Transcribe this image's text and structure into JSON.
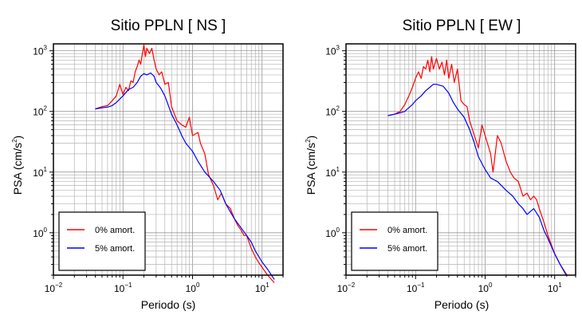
{
  "charts": [
    {
      "title": "Sitio PPLN [ NS ]",
      "xlabel": "Periodo (s)",
      "ylabel_main": "PSA (cm/s",
      "ylabel_sup": "2",
      "ylabel_close": ")"
    },
    {
      "title": "Sitio PPLN [ EW ]",
      "xlabel": "Periodo (s)",
      "ylabel_main": "PSA (cm/s",
      "ylabel_sup": "2",
      "ylabel_close": ")"
    }
  ],
  "chart_data": [
    {
      "type": "line",
      "title": "Sitio PPLN [ NS ]",
      "xlabel": "Periodo (s)",
      "ylabel": "PSA (cm/s2)",
      "xscale": "log",
      "yscale": "log",
      "xlim": [
        0.01,
        20
      ],
      "ylim": [
        0.2,
        1300
      ],
      "x_ticks": [
        {
          "base": "10",
          "exp": "−2",
          "value": 0.01
        },
        {
          "base": "10",
          "exp": "−1",
          "value": 0.1
        },
        {
          "base": "10",
          "exp": "0",
          "value": 1
        },
        {
          "base": "10",
          "exp": "1",
          "value": 10
        }
      ],
      "y_ticks": [
        {
          "base": "10",
          "exp": "0",
          "value": 1
        },
        {
          "base": "10",
          "exp": "1",
          "value": 10
        },
        {
          "base": "10",
          "exp": "2",
          "value": 100
        },
        {
          "base": "10",
          "exp": "3",
          "value": 1000
        }
      ],
      "grid": true,
      "legend_position": "bottom-left",
      "series": [
        {
          "name": "0% amort.",
          "color": "#ff0000",
          "x": [
            0.04,
            0.05,
            0.06,
            0.07,
            0.08,
            0.09,
            0.1,
            0.11,
            0.12,
            0.13,
            0.14,
            0.15,
            0.16,
            0.17,
            0.18,
            0.19,
            0.2,
            0.21,
            0.22,
            0.24,
            0.26,
            0.28,
            0.3,
            0.33,
            0.36,
            0.4,
            0.45,
            0.5,
            0.55,
            0.6,
            0.7,
            0.8,
            0.9,
            1.0,
            1.2,
            1.3,
            1.5,
            1.7,
            2.0,
            2.3,
            2.6,
            3.0,
            3.5,
            4.0,
            4.5,
            5.0,
            5.5,
            6.0,
            7.0,
            8.0,
            9.0,
            10,
            12,
            15
          ],
          "y": [
            110,
            120,
            125,
            150,
            180,
            280,
            190,
            250,
            220,
            320,
            300,
            450,
            550,
            700,
            600,
            900,
            1250,
            800,
            1100,
            900,
            1100,
            700,
            500,
            400,
            450,
            280,
            300,
            120,
            90,
            70,
            60,
            55,
            80,
            40,
            45,
            30,
            20,
            9,
            6,
            3.5,
            4.5,
            3.0,
            2.5,
            1.7,
            1.3,
            1.1,
            0.9,
            0.9,
            0.55,
            0.4,
            0.32,
            0.27,
            0.2,
            0.15
          ]
        },
        {
          "name": "5% amort.",
          "color": "#0000ff",
          "x": [
            0.04,
            0.05,
            0.06,
            0.07,
            0.08,
            0.09,
            0.1,
            0.12,
            0.14,
            0.16,
            0.18,
            0.2,
            0.22,
            0.25,
            0.28,
            0.3,
            0.35,
            0.4,
            0.5,
            0.6,
            0.7,
            0.8,
            1.0,
            1.2,
            1.5,
            2.0,
            2.5,
            3.0,
            3.5,
            4.0,
            5.0,
            6.0,
            7.0,
            8.0,
            10,
            12,
            15
          ],
          "y": [
            110,
            115,
            118,
            125,
            140,
            160,
            180,
            230,
            250,
            300,
            380,
            420,
            400,
            430,
            380,
            300,
            240,
            180,
            90,
            60,
            40,
            30,
            22,
            15,
            10,
            7,
            5,
            3,
            2.2,
            1.7,
            1.2,
            0.9,
            0.7,
            0.5,
            0.33,
            0.25,
            0.17
          ]
        }
      ]
    },
    {
      "type": "line",
      "title": "Sitio PPLN [ EW ]",
      "xlabel": "Periodo (s)",
      "ylabel": "PSA (cm/s2)",
      "xscale": "log",
      "yscale": "log",
      "xlim": [
        0.01,
        20
      ],
      "ylim": [
        0.2,
        1300
      ],
      "x_ticks": [
        {
          "base": "10",
          "exp": "−2",
          "value": 0.01
        },
        {
          "base": "10",
          "exp": "−1",
          "value": 0.1
        },
        {
          "base": "10",
          "exp": "0",
          "value": 1
        },
        {
          "base": "10",
          "exp": "1",
          "value": 10
        }
      ],
      "y_ticks": [
        {
          "base": "10",
          "exp": "0",
          "value": 1
        },
        {
          "base": "10",
          "exp": "1",
          "value": 10
        },
        {
          "base": "10",
          "exp": "2",
          "value": 100
        },
        {
          "base": "10",
          "exp": "3",
          "value": 1000
        }
      ],
      "grid": true,
      "legend_position": "bottom-left",
      "series": [
        {
          "name": "0% amort.",
          "color": "#ff0000",
          "x": [
            0.04,
            0.05,
            0.06,
            0.07,
            0.08,
            0.09,
            0.1,
            0.11,
            0.12,
            0.13,
            0.14,
            0.15,
            0.16,
            0.17,
            0.18,
            0.2,
            0.22,
            0.24,
            0.26,
            0.28,
            0.3,
            0.33,
            0.36,
            0.4,
            0.45,
            0.5,
            0.55,
            0.6,
            0.7,
            0.8,
            0.9,
            1.0,
            1.2,
            1.3,
            1.5,
            1.7,
            2.0,
            2.3,
            2.6,
            3.0,
            3.5,
            4.0,
            4.5,
            5.0,
            5.5,
            6.0,
            7.0,
            8.0,
            10,
            12,
            15
          ],
          "y": [
            85,
            90,
            100,
            130,
            180,
            250,
            350,
            450,
            350,
            550,
            500,
            700,
            450,
            800,
            500,
            750,
            500,
            650,
            400,
            700,
            350,
            600,
            300,
            500,
            150,
            130,
            120,
            70,
            40,
            25,
            60,
            40,
            20,
            10,
            40,
            30,
            15,
            10,
            8,
            7,
            4.0,
            4.5,
            3.5,
            4.0,
            3.5,
            2.5,
            1.5,
            0.9,
            0.45,
            0.3,
            0.2
          ]
        },
        {
          "name": "5% amort.",
          "color": "#0000ff",
          "x": [
            0.04,
            0.05,
            0.06,
            0.07,
            0.08,
            0.09,
            0.1,
            0.12,
            0.14,
            0.16,
            0.18,
            0.2,
            0.25,
            0.3,
            0.35,
            0.4,
            0.5,
            0.6,
            0.7,
            0.8,
            1.0,
            1.2,
            1.5,
            2.0,
            2.5,
            3.0,
            3.5,
            4.0,
            5.0,
            6.0,
            7.0,
            8.0,
            10,
            12,
            15
          ],
          "y": [
            85,
            90,
            95,
            100,
            115,
            130,
            150,
            180,
            220,
            250,
            280,
            280,
            260,
            200,
            140,
            110,
            80,
            50,
            30,
            18,
            11,
            8,
            7,
            5,
            4,
            3,
            2.5,
            2.0,
            2.5,
            1.8,
            1.1,
            0.8,
            0.45,
            0.3,
            0.19
          ]
        }
      ]
    }
  ]
}
